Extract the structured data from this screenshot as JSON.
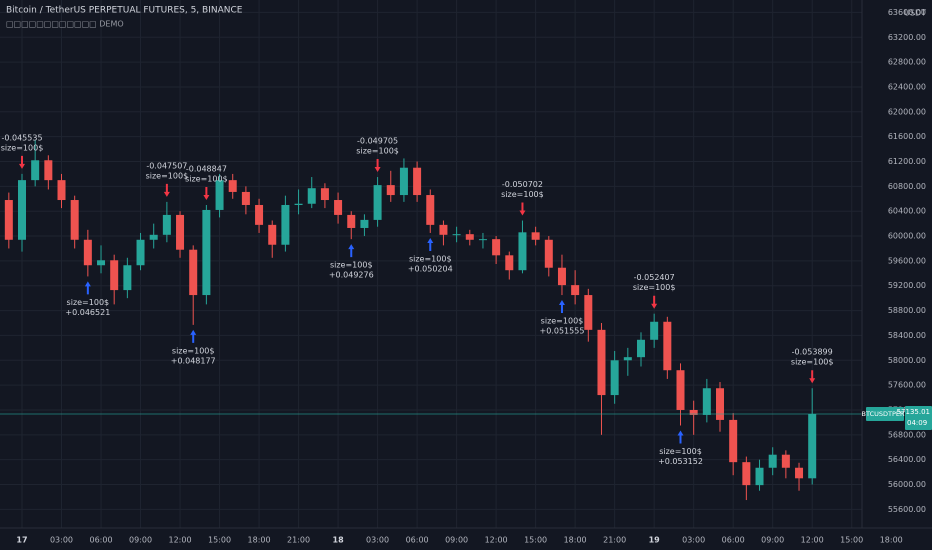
{
  "chart_data": {
    "type": "candlestick",
    "title": "Bitcoin / TetherUS PERPETUAL FUTURES, 5, BINANCE",
    "subtitle": "□□□□□□□□□□□□ DEMO",
    "y_unit": "USDT",
    "categories": [
      null,
      "17",
      null,
      null,
      "03:00",
      null,
      null,
      "06:00",
      null,
      null,
      "09:00",
      null,
      null,
      "12:00",
      null,
      null,
      "15:00",
      null,
      null,
      "18:00",
      null,
      null,
      "21:00",
      null,
      null,
      "18",
      null,
      null,
      "03:00",
      null,
      null,
      "06:00",
      null,
      null,
      "09:00",
      null,
      null,
      "12:00",
      null,
      null,
      "15:00",
      null,
      null,
      "18:00",
      null,
      null,
      "21:00",
      null,
      null,
      "19",
      null,
      null,
      "03:00",
      null,
      null,
      "06:00",
      null,
      null,
      "09:00",
      null,
      null,
      "12:00",
      null,
      null,
      "15:00",
      null,
      null,
      "18:00"
    ],
    "open": [
      60580,
      59940,
      60900,
      61220,
      60900,
      60580,
      59940,
      59530,
      59610,
      59130,
      59530,
      59940,
      60020,
      60340,
      59780,
      59050,
      60420,
      60900,
      60710,
      60500,
      60180,
      59860,
      60500,
      60520,
      60770,
      60580,
      60340,
      60130,
      60260,
      60820,
      60660,
      61100,
      60660,
      60180,
      60020,
      60030,
      59940,
      59950,
      59690,
      59450,
      60060,
      59940,
      59490,
      59210,
      59050,
      58490,
      57440,
      58000,
      58050,
      58330,
      58620,
      57840,
      57200,
      57120,
      57550,
      57040,
      56360,
      55990,
      56270,
      56480,
      56270,
      56100,
      null,
      null,
      null,
      null,
      null,
      null
    ],
    "high": [
      60700,
      61000,
      61550,
      61300,
      61000,
      60650,
      60100,
      59850,
      59700,
      59650,
      60050,
      60200,
      60550,
      60400,
      59850,
      60500,
      61000,
      61000,
      60800,
      60600,
      60250,
      60650,
      60750,
      60950,
      60850,
      60700,
      60400,
      60350,
      60950,
      61050,
      61250,
      61200,
      60750,
      60250,
      60150,
      60100,
      60050,
      60000,
      59750,
      60250,
      60150,
      60000,
      59700,
      59450,
      59150,
      58600,
      58150,
      58200,
      58450,
      58750,
      58700,
      57950,
      57350,
      57700,
      57650,
      57150,
      56450,
      56400,
      56600,
      56550,
      56350,
      57550,
      null,
      null,
      null,
      null,
      null,
      null
    ],
    "low": [
      59800,
      59750,
      60800,
      60750,
      60450,
      59800,
      59350,
      59400,
      58900,
      59000,
      59450,
      59800,
      59900,
      59650,
      58570,
      58900,
      60300,
      60600,
      60350,
      60050,
      59650,
      59750,
      60350,
      60450,
      60450,
      60200,
      59950,
      60000,
      60150,
      60550,
      60550,
      60550,
      60050,
      59850,
      59900,
      59850,
      59800,
      59550,
      59300,
      59400,
      59850,
      59350,
      59050,
      58900,
      58300,
      56800,
      57300,
      57750,
      57900,
      58200,
      57700,
      56950,
      56800,
      57000,
      56850,
      56150,
      55750,
      55900,
      56150,
      56100,
      55900,
      56000,
      null,
      null,
      null,
      null,
      null,
      null
    ],
    "close": [
      59940,
      60900,
      61220,
      60900,
      60580,
      59940,
      59530,
      59610,
      59130,
      59530,
      59940,
      60020,
      60340,
      59780,
      59050,
      60420,
      60900,
      60710,
      60500,
      60180,
      59860,
      60500,
      60520,
      60770,
      60580,
      60340,
      60130,
      60260,
      60820,
      60660,
      61100,
      60660,
      60180,
      60020,
      60030,
      59940,
      59950,
      59690,
      59450,
      60060,
      59940,
      59490,
      59210,
      59050,
      58490,
      57440,
      58000,
      58050,
      58330,
      58620,
      57840,
      57200,
      57120,
      57550,
      57040,
      56360,
      55990,
      56270,
      56480,
      56270,
      56100,
      57135.01,
      null,
      null,
      null,
      null,
      null,
      null
    ],
    "up_color": "#26a69a",
    "down_color": "#ef5350",
    "ylim": [
      55300,
      63800
    ],
    "yticks": [
      {
        "value": 55600,
        "label": "55600.00"
      },
      {
        "value": 56000,
        "label": "56000.00"
      },
      {
        "value": 56400,
        "label": "56400.00"
      },
      {
        "value": 56800,
        "label": "56800.00"
      },
      {
        "value": 57200,
        "label": "57200.00"
      },
      {
        "value": 57600,
        "label": "57600.00"
      },
      {
        "value": 58000,
        "label": "58000.00"
      },
      {
        "value": 58400,
        "label": "58400.00"
      },
      {
        "value": 58800,
        "label": "58800.00"
      },
      {
        "value": 59200,
        "label": "59200.00"
      },
      {
        "value": 59600,
        "label": "59600.00"
      },
      {
        "value": 60000,
        "label": "60000.00"
      },
      {
        "value": 60400,
        "label": "60400.00"
      },
      {
        "value": 60800,
        "label": "60800.00"
      },
      {
        "value": 61200,
        "label": "61200.00"
      },
      {
        "value": 61600,
        "label": "61600.00"
      },
      {
        "value": 62000,
        "label": "62000.00"
      },
      {
        "value": 62400,
        "label": "62400.00"
      },
      {
        "value": 62800,
        "label": "62800.00"
      },
      {
        "value": 63200,
        "label": "63200.00"
      },
      {
        "value": 63600,
        "label": "63600.00"
      }
    ],
    "grid": true,
    "last_price": {
      "value": 57135.01,
      "label": "57135.01"
    },
    "symbol_label": "BTCUSDTPERP",
    "countdown": "04:09",
    "sell_color": "#f23645",
    "buy_color": "#2962ff",
    "annotations": [
      {
        "side": "sell",
        "index": 1,
        "label": "-0.045535",
        "size": "size=100$"
      },
      {
        "side": "buy",
        "index": 6,
        "label": "+0.046521",
        "size": "size=100$"
      },
      {
        "side": "sell",
        "index": 12,
        "label": "-0.047507",
        "size": "size=100$"
      },
      {
        "side": "buy",
        "index": 14,
        "label": "+0.048177",
        "size": "size=100$"
      },
      {
        "side": "sell",
        "index": 15,
        "label": "-0.048847",
        "size": "size=100$"
      },
      {
        "side": "buy",
        "index": 26,
        "label": "+0.049276",
        "size": "size=100$"
      },
      {
        "side": "sell",
        "index": 28,
        "label": "-0.049705",
        "size": "size=100$"
      },
      {
        "side": "buy",
        "index": 32,
        "label": "+0.050204",
        "size": "size=100$"
      },
      {
        "side": "sell",
        "index": 39,
        "label": "-0.050702",
        "size": "size=100$"
      },
      {
        "side": "buy",
        "index": 42,
        "label": "+0.051555",
        "size": "size=100$"
      },
      {
        "side": "sell",
        "index": 49,
        "label": "-0.052407",
        "size": "size=100$"
      },
      {
        "side": "buy",
        "index": 51,
        "label": "+0.053152",
        "size": "size=100$"
      },
      {
        "side": "sell",
        "index": 61,
        "label": "-0.053899",
        "size": "size=100$"
      }
    ]
  }
}
